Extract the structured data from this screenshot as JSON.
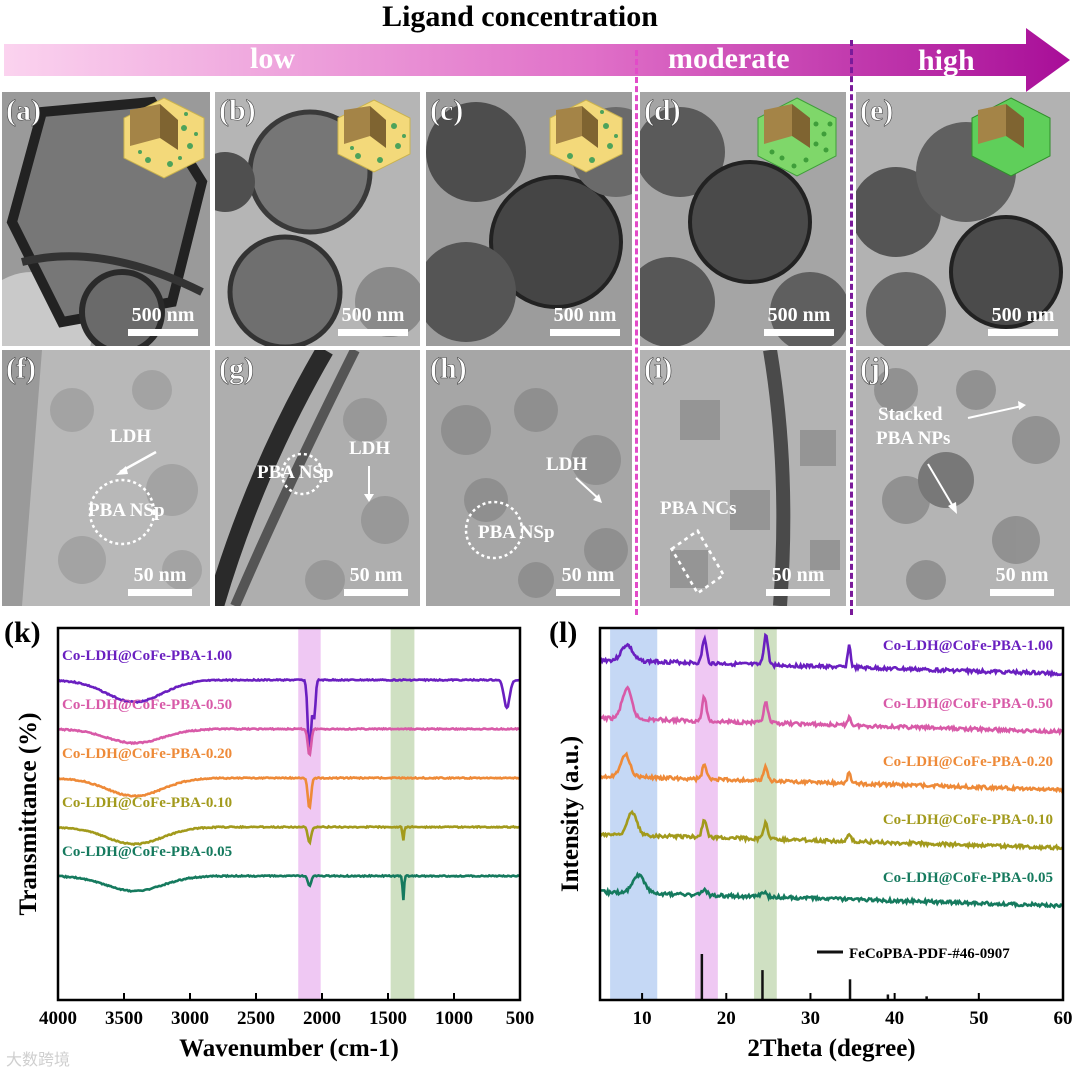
{
  "header": {
    "title": "Ligand concentration",
    "low": "low",
    "moderate": "moderate",
    "high": "high"
  },
  "colors": {
    "arrow_start": "#fbd3ef",
    "arrow_end": "#b0139f",
    "divider_moderate": "#e24bc8",
    "divider_high": "#7a1a9a"
  },
  "tem_top": [
    {
      "label": "(a)",
      "scale": "500 nm"
    },
    {
      "label": "(b)",
      "scale": "500 nm"
    },
    {
      "label": "(c)",
      "scale": "500 nm"
    },
    {
      "label": "(d)",
      "scale": "500 nm"
    },
    {
      "label": "(e)",
      "scale": "500 nm"
    }
  ],
  "tem_bottom": [
    {
      "label": "(f)",
      "scale": "50 nm",
      "ann1": "LDH",
      "ann2": "PBA NSp"
    },
    {
      "label": "(g)",
      "scale": "50 nm",
      "ann1": "LDH",
      "ann2": "PBA NSp"
    },
    {
      "label": "(h)",
      "scale": "50 nm",
      "ann1": "LDH",
      "ann2": "PBA NSp"
    },
    {
      "label": "(i)",
      "scale": "50 nm",
      "ann1": "PBA NCs"
    },
    {
      "label": "(j)",
      "scale": "50 nm",
      "ann1": "Stacked",
      "ann2": "PBA NPs"
    }
  ],
  "chart_data": [
    {
      "type": "line",
      "panel": "(k)",
      "title": "",
      "xlabel": "Wavenumber (cm-1)",
      "ylabel": "Transmittance (%)",
      "xlim": [
        4000,
        500
      ],
      "x_ticks": [
        4000,
        3500,
        3000,
        2500,
        2000,
        1500,
        1000,
        500
      ],
      "highlight_bands": [
        {
          "from": 2180,
          "to": 2010,
          "color": "#efc8f3"
        },
        {
          "from": 1480,
          "to": 1300,
          "color": "#cfe0c2"
        }
      ],
      "series": [
        {
          "name": "Co-LDH@CoFe-PBA-1.00",
          "color": "#6a1fc0",
          "offset": 0,
          "features": [
            [
              3420,
              22,
              300
            ],
            [
              2095,
              75,
              18
            ],
            [
              2060,
              38,
              15
            ],
            [
              600,
              28,
              30
            ]
          ]
        },
        {
          "name": "Co-LDH@CoFe-PBA-0.50",
          "color": "#d85aa8",
          "offset": 1,
          "features": [
            [
              3420,
              14,
              300
            ],
            [
              2095,
              26,
              18
            ]
          ]
        },
        {
          "name": "Co-LDH@CoFe-PBA-0.20",
          "color": "#ee8a38",
          "offset": 2,
          "features": [
            [
              3420,
              18,
              300
            ],
            [
              2095,
              30,
              18
            ]
          ]
        },
        {
          "name": "Co-LDH@CoFe-PBA-0.10",
          "color": "#a29a1c",
          "offset": 3,
          "features": [
            [
              3420,
              17,
              300
            ],
            [
              2095,
              16,
              18
            ],
            [
              1384,
              14,
              8
            ]
          ]
        },
        {
          "name": "Co-LDH@CoFe-PBA-0.05",
          "color": "#157a5e",
          "offset": 4,
          "features": [
            [
              3420,
              15,
              300
            ],
            [
              2095,
              10,
              18
            ],
            [
              1384,
              24,
              8
            ]
          ]
        }
      ]
    },
    {
      "type": "line",
      "panel": "(l)",
      "title": "",
      "xlabel": "2Theta (degree)",
      "ylabel": "Intensity (a.u.)",
      "xlim": [
        5,
        60
      ],
      "x_ticks": [
        10,
        20,
        30,
        40,
        50,
        60
      ],
      "highlight_bands": [
        {
          "from": 6.2,
          "to": 11.8,
          "color": "#c5d8f5"
        },
        {
          "from": 16.3,
          "to": 19.0,
          "color": "#efc8f3"
        },
        {
          "from": 23.3,
          "to": 26.0,
          "color": "#cfe0c2"
        }
      ],
      "series": [
        {
          "name": "Co-LDH@CoFe-PBA-1.00",
          "color": "#6a1fc0",
          "offset": 0,
          "features": [
            [
              8.2,
              16,
              0.9
            ],
            [
              17.4,
              24,
              0.35
            ],
            [
              24.7,
              30,
              0.35
            ],
            [
              34.6,
              22,
              0.25
            ]
          ]
        },
        {
          "name": "Co-LDH@CoFe-PBA-0.50",
          "color": "#d85aa8",
          "offset": 1,
          "features": [
            [
              8.2,
              30,
              0.8
            ],
            [
              17.4,
              24,
              0.35
            ],
            [
              24.7,
              20,
              0.35
            ],
            [
              34.6,
              8,
              0.3
            ]
          ]
        },
        {
          "name": "Co-LDH@CoFe-PBA-0.20",
          "color": "#ee8a38",
          "offset": 2,
          "features": [
            [
              8.0,
              22,
              0.8
            ],
            [
              17.4,
              14,
              0.35
            ],
            [
              24.7,
              14,
              0.35
            ],
            [
              34.6,
              10,
              0.3
            ]
          ]
        },
        {
          "name": "Co-LDH@CoFe-PBA-0.10",
          "color": "#a29a1c",
          "offset": 3,
          "features": [
            [
              8.8,
              22,
              0.8
            ],
            [
              17.4,
              18,
              0.35
            ],
            [
              24.7,
              16,
              0.35
            ],
            [
              34.6,
              6,
              0.3
            ]
          ]
        },
        {
          "name": "Co-LDH@CoFe-PBA-0.05",
          "color": "#157a5e",
          "offset": 4,
          "features": [
            [
              9.6,
              18,
              1.0
            ],
            [
              17.4,
              6,
              0.4
            ],
            [
              24.4,
              5,
              0.4
            ]
          ]
        }
      ],
      "reference": {
        "name": "FeCoPBA-PDF-#46-0907",
        "color": "#111111",
        "peaks": [
          [
            17.1,
            1.0
          ],
          [
            24.3,
            0.65
          ],
          [
            34.7,
            0.45
          ],
          [
            39.2,
            0.12
          ],
          [
            43.8,
            0.08
          ]
        ]
      }
    }
  ],
  "watermark": "大数跨境"
}
